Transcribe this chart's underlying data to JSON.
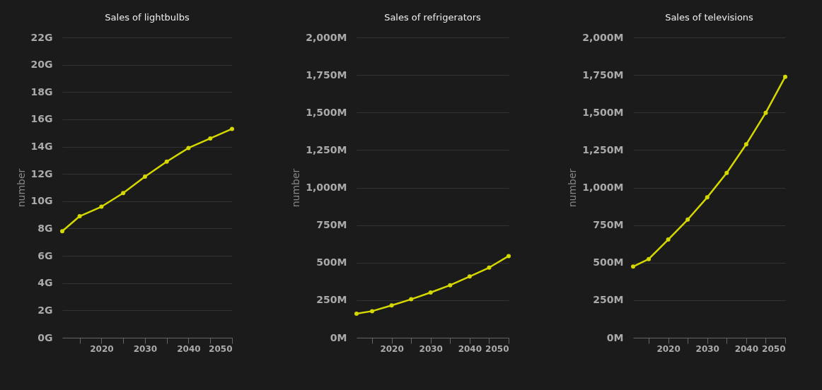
{
  "chart_data": [
    {
      "type": "line",
      "title": "Sales of lightbulbs",
      "ylabel": "number",
      "x": [
        2011,
        2015,
        2020,
        2025,
        2030,
        2035,
        2040,
        2045,
        2050
      ],
      "series": [
        {
          "color": "#d4d700",
          "values": [
            7.8,
            8.9,
            9.6,
            10.6,
            11.8,
            12.9,
            13.9,
            14.6,
            15.3
          ]
        }
      ],
      "xlim": [
        2011,
        2050
      ],
      "xticks": [
        {
          "value": 2015,
          "label": null
        },
        2020,
        {
          "value": 2025,
          "label": null
        },
        2030,
        {
          "value": 2035,
          "label": null
        },
        2040,
        {
          "value": 2045,
          "label": null
        },
        2050
      ],
      "ylim": [
        0,
        22
      ],
      "yticks": [
        {
          "value": 0,
          "label": "0G"
        },
        {
          "value": 2,
          "label": "2G"
        },
        {
          "value": 4,
          "label": "4G"
        },
        {
          "value": 6,
          "label": "6G"
        },
        {
          "value": 8,
          "label": "8G"
        },
        {
          "value": 10,
          "label": "10G"
        },
        {
          "value": 12,
          "label": "12G"
        },
        {
          "value": 14,
          "label": "14G"
        },
        {
          "value": 16,
          "label": "16G"
        },
        {
          "value": 18,
          "label": "18G"
        },
        {
          "value": 20,
          "label": "20G"
        },
        {
          "value": 22,
          "label": "22G"
        }
      ],
      "grid": "y",
      "marker": "circle"
    },
    {
      "type": "line",
      "title": "Sales of refrigerators",
      "ylabel": "number",
      "x": [
        2011,
        2015,
        2020,
        2025,
        2030,
        2035,
        2040,
        2045,
        2050
      ],
      "series": [
        {
          "color": "#d4d700",
          "values": [
            160,
            177,
            215,
            256,
            301,
            350,
            408,
            467,
            544
          ]
        }
      ],
      "xlim": [
        2011,
        2050
      ],
      "xticks": [
        {
          "value": 2015,
          "label": null
        },
        2020,
        {
          "value": 2025,
          "label": null
        },
        2030,
        {
          "value": 2035,
          "label": null
        },
        2040,
        {
          "value": 2045,
          "label": null
        },
        2050
      ],
      "ylim": [
        0,
        2000
      ],
      "yticks": [
        {
          "value": 0,
          "label": "0M"
        },
        {
          "value": 250,
          "label": "250M"
        },
        {
          "value": 500,
          "label": "500M"
        },
        {
          "value": 750,
          "label": "750M"
        },
        {
          "value": 1000,
          "label": "1,000M"
        },
        {
          "value": 1250,
          "label": "1,250M"
        },
        {
          "value": 1500,
          "label": "1,500M"
        },
        {
          "value": 1750,
          "label": "1,750M"
        },
        {
          "value": 2000,
          "label": "2,000M"
        }
      ],
      "grid": "y",
      "marker": "circle"
    },
    {
      "type": "line",
      "title": "Sales of televisions",
      "ylabel": "number",
      "x": [
        2011,
        2015,
        2020,
        2025,
        2030,
        2035,
        2040,
        2045,
        2050
      ],
      "series": [
        {
          "color": "#d4d700",
          "values": [
            474,
            524,
            654,
            787,
            935,
            1098,
            1288,
            1498,
            1738
          ]
        }
      ],
      "xlim": [
        2011,
        2050
      ],
      "xticks": [
        {
          "value": 2015,
          "label": null
        },
        2020,
        {
          "value": 2025,
          "label": null
        },
        2030,
        {
          "value": 2035,
          "label": null
        },
        2040,
        {
          "value": 2045,
          "label": null
        },
        2050
      ],
      "ylim": [
        0,
        2000
      ],
      "yticks": [
        {
          "value": 0,
          "label": "0M"
        },
        {
          "value": 250,
          "label": "250M"
        },
        {
          "value": 500,
          "label": "500M"
        },
        {
          "value": 750,
          "label": "750M"
        },
        {
          "value": 1000,
          "label": "1,000M"
        },
        {
          "value": 1250,
          "label": "1,250M"
        },
        {
          "value": 1500,
          "label": "1,500M"
        },
        {
          "value": 1750,
          "label": "1,750M"
        },
        {
          "value": 2000,
          "label": "2,000M"
        }
      ],
      "grid": "y",
      "marker": "circle"
    }
  ]
}
